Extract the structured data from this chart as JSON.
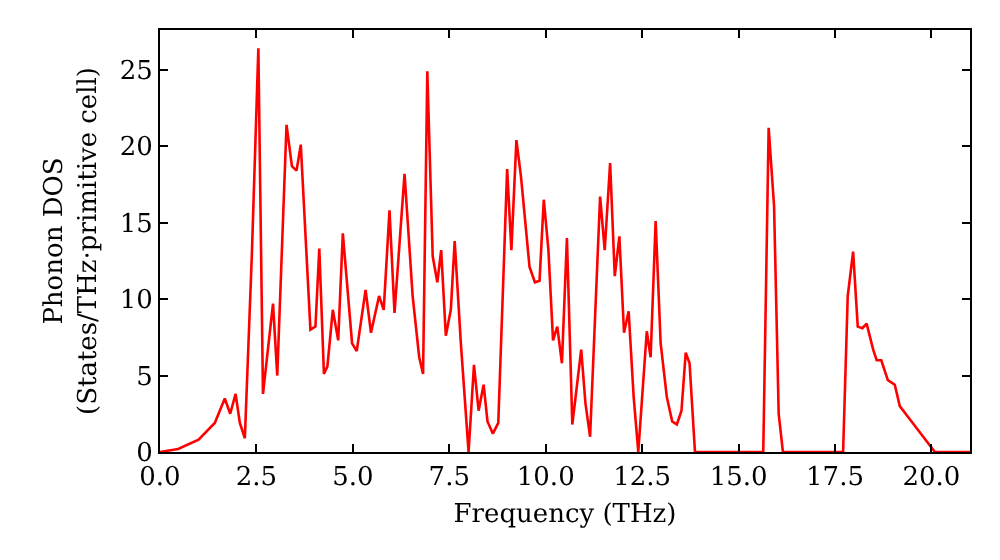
{
  "chart_data": {
    "type": "line",
    "xlabel": "Frequency (THz)",
    "ylabel": "Phonon DOS\n(States/THz·primitive cell)",
    "xlim": [
      0,
      21
    ],
    "xticks": [
      {
        "value": 0,
        "label": "0.0"
      },
      {
        "value": 2.5,
        "label": "2.5"
      },
      {
        "value": 5,
        "label": "5.0"
      },
      {
        "value": 7.5,
        "label": "7.5"
      },
      {
        "value": 10,
        "label": "10.0"
      },
      {
        "value": 12.5,
        "label": "12.5"
      },
      {
        "value": 15,
        "label": "15.0"
      },
      {
        "value": 17.5,
        "label": "17.5"
      },
      {
        "value": 20,
        "label": "20.0"
      }
    ],
    "ylim": [
      0,
      27.6
    ],
    "yticks": [
      0,
      5,
      10,
      15,
      20,
      25
    ],
    "marker": "none",
    "line_style": "solid",
    "x": [
      0,
      0.47,
      1.0,
      1.42,
      1.68,
      1.82,
      1.96,
      2.07,
      2.2,
      2.38,
      2.55,
      2.67,
      2.93,
      3.04,
      3.28,
      3.42,
      3.54,
      3.65,
      3.9,
      4.03,
      4.13,
      4.25,
      4.34,
      4.48,
      4.62,
      4.74,
      4.98,
      5.1,
      5.33,
      5.47,
      5.68,
      5.8,
      5.95,
      6.08,
      6.34,
      6.55,
      6.72,
      6.82,
      6.93,
      7.07,
      7.19,
      7.29,
      7.41,
      7.54,
      7.64,
      7.8,
      8.0,
      8.14,
      8.26,
      8.39,
      8.49,
      8.63,
      8.77,
      9.0,
      9.11,
      9.24,
      9.36,
      9.58,
      9.72,
      9.84,
      9.95,
      10.07,
      10.19,
      10.3,
      10.42,
      10.55,
      10.69,
      10.92,
      11.03,
      11.15,
      11.41,
      11.53,
      11.67,
      11.79,
      11.91,
      12.03,
      12.15,
      12.28,
      12.4,
      12.62,
      12.72,
      12.85,
      12.98,
      13.14,
      13.28,
      13.4,
      13.52,
      13.63,
      13.73,
      13.87,
      15.64,
      15.78,
      15.92,
      16.04,
      16.15,
      17.71,
      17.83,
      17.97,
      18.09,
      18.21,
      18.32,
      18.49,
      18.58,
      18.7,
      18.87,
      19.05,
      19.18,
      19.39,
      20.09,
      21.0
    ],
    "series": [
      {
        "color": "#ff0000",
        "values": [
          0,
          0.2,
          0.8,
          1.9,
          3.5,
          2.5,
          3.8,
          1.9,
          0.9,
          12.8,
          26.4,
          3.8,
          9.7,
          5.0,
          21.4,
          18.7,
          18.4,
          20.1,
          8.0,
          8.2,
          13.3,
          5.1,
          5.6,
          9.3,
          7.3,
          14.3,
          7.1,
          6.6,
          10.6,
          7.8,
          10.2,
          9.3,
          15.8,
          9.1,
          18.2,
          10.2,
          6.2,
          5.1,
          24.9,
          12.8,
          11.1,
          13.2,
          7.6,
          9.3,
          13.8,
          7.1,
          0,
          5.7,
          2.7,
          4.4,
          2.0,
          1.2,
          1.9,
          18.5,
          13.2,
          20.4,
          18.0,
          12.1,
          11.1,
          11.2,
          16.5,
          13.2,
          7.3,
          8.2,
          5.8,
          14.0,
          1.8,
          6.7,
          3.2,
          1.0,
          16.7,
          13.2,
          18.9,
          11.5,
          14.1,
          7.8,
          9.2,
          3.6,
          0,
          7.9,
          6.2,
          15.1,
          7.1,
          3.6,
          2.0,
          1.8,
          2.7,
          6.5,
          5.8,
          0,
          0,
          21.2,
          16.1,
          2.5,
          0,
          0,
          10.2,
          13.1,
          8.2,
          8.1,
          8.4,
          6.7,
          6.0,
          6.0,
          4.7,
          4.4,
          3.0,
          2.3,
          0,
          0
        ]
      }
    ]
  }
}
